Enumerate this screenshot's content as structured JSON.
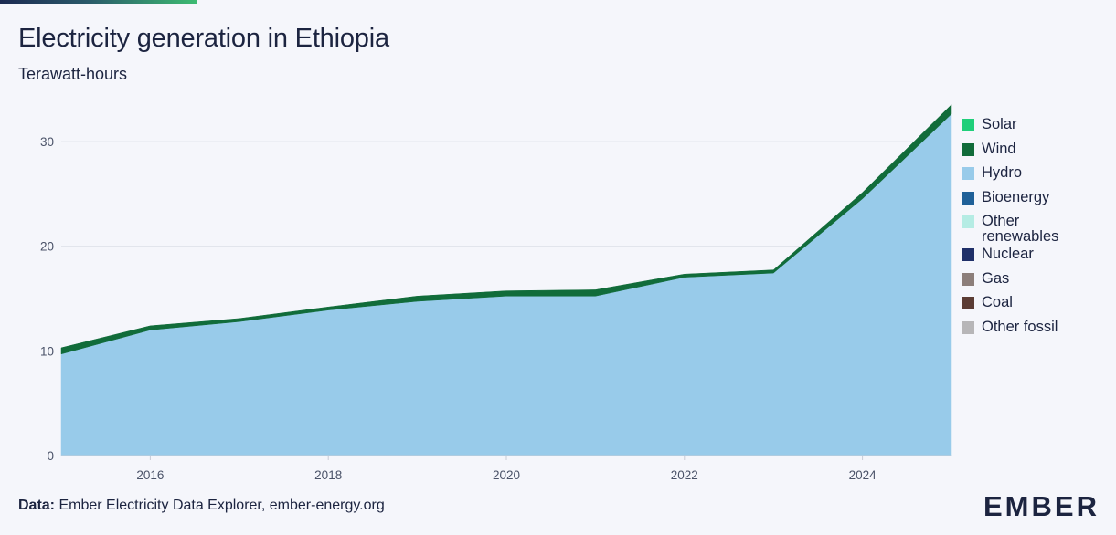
{
  "header": {
    "title": "Electricity generation in Ethiopia",
    "subtitle": "Terawatt-hours"
  },
  "footer": {
    "source_label": "Data:",
    "source_text": "Ember Electricity Data Explorer, ember-energy.org",
    "logo": "EMBER"
  },
  "colors": {
    "background": "#f5f6fb",
    "accent_green": "#3dbb72"
  },
  "chart_data": {
    "type": "area",
    "stacked": true,
    "title": "Electricity generation in Ethiopia",
    "ylabel": "Terawatt-hours",
    "xlim": [
      2015,
      2025
    ],
    "ylim": [
      0,
      33.5
    ],
    "x_ticks": [
      2016,
      2018,
      2020,
      2022,
      2024
    ],
    "y_ticks": [
      0,
      10,
      20,
      30
    ],
    "grid": "horizontal",
    "legend_position": "right",
    "x": [
      2015,
      2016,
      2017,
      2018,
      2019,
      2020,
      2021,
      2022,
      2023,
      2024,
      2025
    ],
    "series": [
      {
        "name": "Solar",
        "color": "#1fcf7a",
        "values": [
          0,
          0,
          0,
          0,
          0,
          0,
          0,
          0,
          0,
          0,
          0
        ]
      },
      {
        "name": "Wind",
        "color": "#116c3a",
        "values": [
          0.6,
          0.4,
          0.3,
          0.3,
          0.5,
          0.5,
          0.6,
          0.3,
          0.3,
          0.6,
          0.9
        ]
      },
      {
        "name": "Hydro",
        "color": "#98cbea",
        "values": [
          9.7,
          12.0,
          12.8,
          13.9,
          14.7,
          15.2,
          15.2,
          17.0,
          17.4,
          24.5,
          32.6
        ]
      },
      {
        "name": "Bioenergy",
        "color": "#1f6098",
        "values": [
          0,
          0,
          0,
          0,
          0.02,
          0.02,
          0.02,
          0.02,
          0.02,
          0.02,
          0.02
        ]
      },
      {
        "name": "Other renewables",
        "color": "#b5ece4",
        "values": [
          0,
          0,
          0,
          0,
          0.02,
          0.02,
          0.02,
          0.02,
          0.02,
          0.02,
          0.02
        ]
      },
      {
        "name": "Nuclear",
        "color": "#1f3069",
        "values": [
          0,
          0,
          0,
          0,
          0,
          0,
          0,
          0,
          0,
          0,
          0
        ]
      },
      {
        "name": "Gas",
        "color": "#8c7e7a",
        "values": [
          0,
          0,
          0,
          0,
          0,
          0,
          0,
          0,
          0,
          0,
          0
        ]
      },
      {
        "name": "Coal",
        "color": "#5b3c34",
        "values": [
          0,
          0,
          0,
          0,
          0,
          0,
          0,
          0,
          0,
          0,
          0
        ]
      },
      {
        "name": "Other fossil",
        "color": "#b7b6b8",
        "values": [
          0,
          0,
          0,
          0,
          0,
          0,
          0,
          0,
          0,
          0,
          0
        ]
      }
    ],
    "stack_order": [
      "Other fossil",
      "Coal",
      "Gas",
      "Nuclear",
      "Other renewables",
      "Bioenergy",
      "Hydro",
      "Wind",
      "Solar"
    ]
  }
}
